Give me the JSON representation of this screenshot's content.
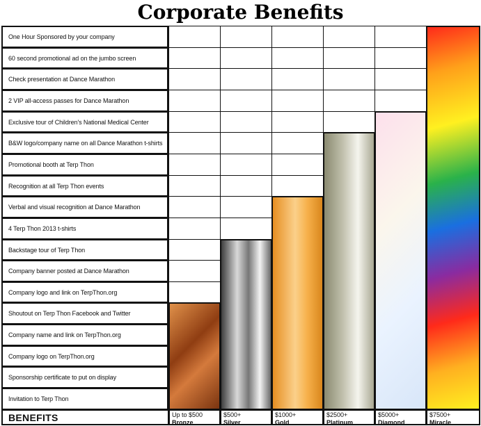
{
  "title": "Corporate Benefits",
  "benefits_header": "BENEFITS",
  "benefits": [
    "One Hour Sponsored by your company",
    "60 second promotional ad on the jumbo screen",
    "Check presentation at Dance Marathon",
    "2 VIP all-access passes for Dance Marathon",
    "Exclusive tour of Children's National Medical Center",
    "B&W logo/company name on all Dance Marathon t-shirts",
    "Promotional booth at Terp Thon",
    "Recognition at all Terp Thon events",
    "Verbal and visual recognition at Dance Marathon",
    "4 Terp Thon 2013 t-shirts",
    "Backstage tour of Terp Thon",
    "Company banner posted at Dance Marathon",
    "Company logo and link on TerpThon.org",
    "Shoutout on Terp Thon Facebook and Twitter",
    "Company name and link on TerpThon.org",
    "Company logo on TerpThon.org",
    "Sponsorship certificate to put on display",
    "Invitation to Terp Thon"
  ],
  "tiers": [
    {
      "amount": "Up to $500",
      "name": "Bronze",
      "benefits_included": 5
    },
    {
      "amount": "$500+",
      "name": "Silver",
      "benefits_included": 8
    },
    {
      "amount": "$1000+",
      "name": "Gold",
      "benefits_included": 10
    },
    {
      "amount": "$2500+",
      "name": "Platinum",
      "benefits_included": 13
    },
    {
      "amount": "$5000+",
      "name": "Diamond",
      "benefits_included": 14
    },
    {
      "amount": "$7500+",
      "name": "Miracle",
      "benefits_included": 18
    }
  ]
}
